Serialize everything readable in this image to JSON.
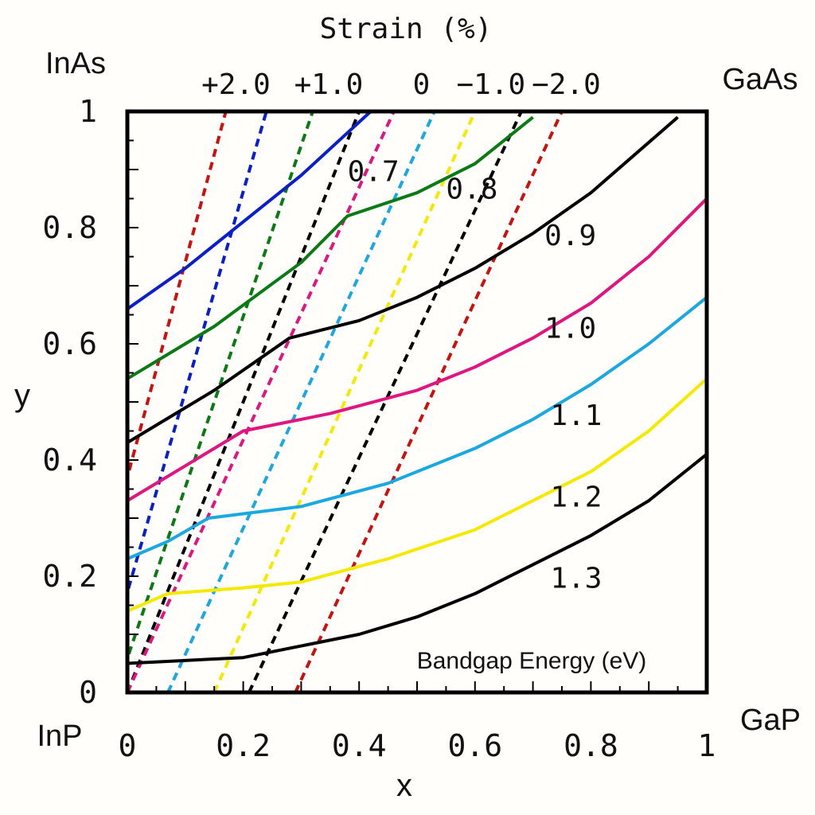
{
  "chart_data": {
    "type": "line",
    "title": "Strain (%)",
    "xlabel": "x",
    "ylabel": "y",
    "xlim": [
      0,
      1
    ],
    "ylim": [
      0,
      1
    ],
    "xticks": [
      "0",
      "0.2",
      "0.4",
      "0.6",
      "0.8",
      "1"
    ],
    "yticks": [
      "0",
      "0.2",
      "0.4",
      "0.6",
      "0.8",
      "1"
    ],
    "corner_labels": {
      "top_left": "InAs",
      "top_right": "GaAs",
      "bottom_left": "InP",
      "bottom_right": "GaP"
    },
    "annotation": "Bandgap Energy (eV)",
    "bandgap_series": [
      {
        "name": "0.7",
        "color": "#0a1ecc",
        "x": [
          0,
          0.1,
          0.2,
          0.3,
          0.42
        ],
        "y": [
          0.66,
          0.73,
          0.81,
          0.89,
          1.0
        ]
      },
      {
        "name": "0.8",
        "color": "#0a7a14",
        "x": [
          0,
          0.15,
          0.3,
          0.38,
          0.5,
          0.6,
          0.7
        ],
        "y": [
          0.54,
          0.63,
          0.74,
          0.82,
          0.86,
          0.91,
          0.99
        ]
      },
      {
        "name": "0.9",
        "color": "#000000",
        "x": [
          0,
          0.15,
          0.28,
          0.4,
          0.5,
          0.6,
          0.7,
          0.8,
          0.95
        ],
        "y": [
          0.43,
          0.52,
          0.61,
          0.64,
          0.68,
          0.73,
          0.79,
          0.86,
          0.99
        ]
      },
      {
        "name": "1.0",
        "color": "#e0157f",
        "x": [
          0,
          0.1,
          0.2,
          0.35,
          0.5,
          0.6,
          0.7,
          0.8,
          0.9,
          1.0
        ],
        "y": [
          0.33,
          0.39,
          0.45,
          0.48,
          0.52,
          0.56,
          0.61,
          0.67,
          0.75,
          0.85
        ]
      },
      {
        "name": "1.1",
        "color": "#1aa8e0",
        "x": [
          0,
          0.07,
          0.14,
          0.3,
          0.45,
          0.6,
          0.7,
          0.8,
          0.9,
          1.0
        ],
        "y": [
          0.23,
          0.26,
          0.3,
          0.32,
          0.36,
          0.42,
          0.47,
          0.53,
          0.6,
          0.68
        ]
      },
      {
        "name": "1.2",
        "color": "#f5e900",
        "x": [
          0,
          0.07,
          0.2,
          0.3,
          0.45,
          0.6,
          0.7,
          0.8,
          0.9,
          1.0
        ],
        "y": [
          0.14,
          0.17,
          0.18,
          0.19,
          0.23,
          0.28,
          0.33,
          0.38,
          0.45,
          0.54
        ]
      },
      {
        "name": "1.3",
        "color": "#000000",
        "x": [
          0,
          0.2,
          0.3,
          0.4,
          0.5,
          0.6,
          0.7,
          0.8,
          0.9,
          1.0
        ],
        "y": [
          0.05,
          0.06,
          0.08,
          0.1,
          0.13,
          0.17,
          0.22,
          0.27,
          0.33,
          0.41
        ]
      }
    ],
    "bandgap_label_positions": [
      {
        "name": "0.7",
        "x": 0.38,
        "y": 0.88
      },
      {
        "name": "0.8",
        "x": 0.55,
        "y": 0.85
      },
      {
        "name": "0.9",
        "x": 0.72,
        "y": 0.77
      },
      {
        "name": "1.0",
        "x": 0.72,
        "y": 0.61
      },
      {
        "name": "1.1",
        "x": 0.73,
        "y": 0.46
      },
      {
        "name": "1.2",
        "x": 0.73,
        "y": 0.32
      },
      {
        "name": "1.3",
        "x": 0.73,
        "y": 0.18
      }
    ],
    "strain_labels": [
      {
        "text": "+2.0",
        "x": 0.16
      },
      {
        "text": "+1.0",
        "x": 0.32
      },
      {
        "text": "0",
        "x": 0.48
      },
      {
        "text": "−1.0",
        "x": 0.6
      },
      {
        "text": "−2.0",
        "x": 0.73
      }
    ],
    "strain_series": [
      {
        "color": "#cc1010",
        "x0": -0.1,
        "x1": 0.17
      },
      {
        "color": "#0a1ecc",
        "x0": -0.05,
        "x1": 0.24
      },
      {
        "color": "#0a7a14",
        "x0": -0.02,
        "x1": 0.32
      },
      {
        "color": "#000000",
        "x0": 0.0,
        "x1": 0.4
      },
      {
        "color": "#e0157f",
        "x0": 0.0,
        "x1": 0.46
      },
      {
        "color": "#1aa8e0",
        "x0": 0.07,
        "x1": 0.53
      },
      {
        "color": "#f5e900",
        "x0": 0.15,
        "x1": 0.6
      },
      {
        "color": "#000000",
        "x0": 0.21,
        "x1": 0.68
      },
      {
        "color": "#cc1010",
        "x0": 0.29,
        "x1": 0.75
      }
    ]
  }
}
